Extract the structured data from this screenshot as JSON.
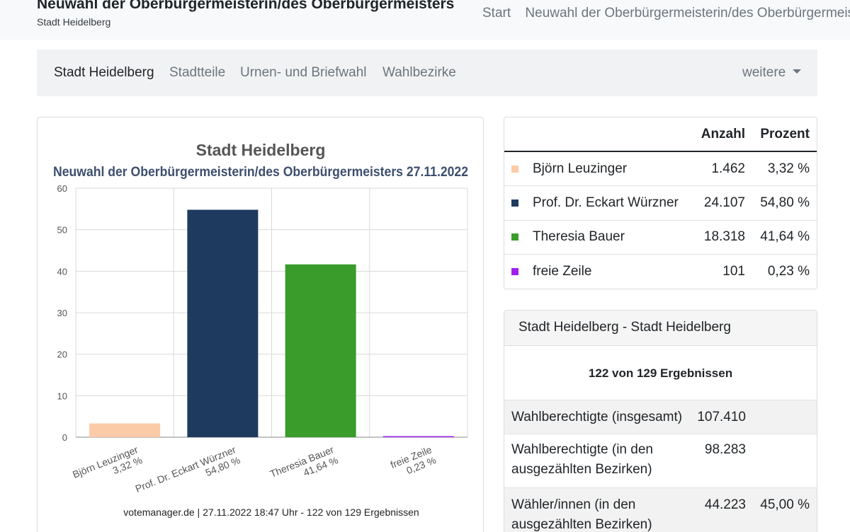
{
  "header": {
    "title": "Neuwahl der Oberbürgermeisterin/des Oberbürgermeisters",
    "subtitle": "Stadt Heidelberg",
    "nav": [
      "Start",
      "Neuwahl der Oberbürgermeisterin/des Oberbürgermeisters"
    ]
  },
  "subnav": {
    "items": [
      "Stadt Heidelberg",
      "Stadtteile",
      "Urnen- und Briefwahl",
      "Wahlbezirke"
    ],
    "more_label": "weitere"
  },
  "chart_data": {
    "type": "bar",
    "title": "Stadt Heidelberg",
    "subtitle": "Neuwahl der Oberbürgermeisterin/des Oberbürgermeisters 27.11.2022",
    "categories": [
      "Björn Leuzinger",
      "Prof. Dr. Eckart Würzner",
      "Theresia Bauer",
      "freie Zeile"
    ],
    "value_labels": [
      "3,32 %",
      "54,80 %",
      "41,64 %",
      "0,23 %"
    ],
    "values": [
      3.32,
      54.8,
      41.64,
      0.23
    ],
    "colors": [
      "#fbcba7",
      "#1e3a5f",
      "#3a9c2b",
      "#a020f0"
    ],
    "ylim": [
      0,
      60
    ],
    "yticks": [
      0,
      10,
      20,
      30,
      40,
      50,
      60
    ],
    "grid": true,
    "footer": "votemanager.de | 27.11.2022 18:47 Uhr - 122 von 129 Ergebnissen"
  },
  "results_table": {
    "headers": [
      "",
      "Anzahl",
      "Prozent"
    ],
    "rows": [
      {
        "name": "Björn Leuzinger",
        "count": "1.462",
        "percent": "3,32 %",
        "color": "#fbcba7"
      },
      {
        "name": "Prof. Dr. Eckart Würzner",
        "count": "24.107",
        "percent": "54,80 %",
        "color": "#1e3a5f"
      },
      {
        "name": "Theresia Bauer",
        "count": "18.318",
        "percent": "41,64 %",
        "color": "#3a9c2b"
      },
      {
        "name": "freie Zeile",
        "count": "101",
        "percent": "0,23 %",
        "color": "#a020f0"
      }
    ]
  },
  "summary": {
    "header": "Stadt Heidelberg - Stadt Heidelberg",
    "results": "122 von 129 Ergebnissen",
    "rows": [
      {
        "label": "Wahlberechtigte (insgesamt)",
        "value": "107.410",
        "percent": ""
      },
      {
        "label": "Wahlberechtigte (in den ausgezählten Bezirken)",
        "value": "98.283",
        "percent": ""
      },
      {
        "label": "Wähler/innen (in den ausgezählten Bezirken)",
        "value": "44.223",
        "percent": "45,00 %"
      }
    ]
  }
}
